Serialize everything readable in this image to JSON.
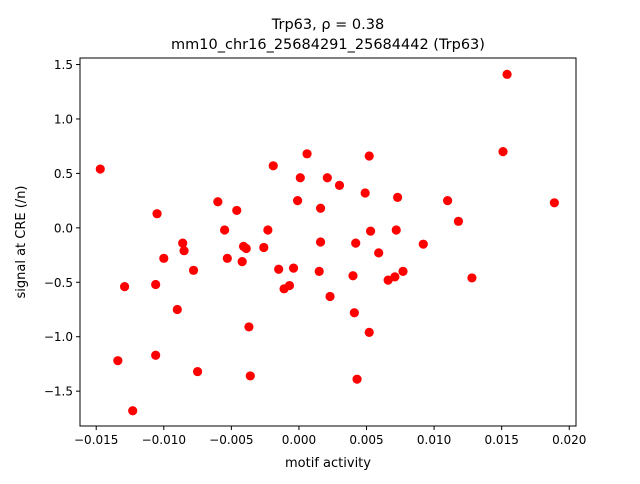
{
  "chart_data": {
    "type": "scatter",
    "title_line1": "Trp63, ρ = 0.38",
    "title_line2": "mm10_chr16_25684291_25684442 (Trp63)",
    "xlabel": "motif activity",
    "ylabel": "signal at CRE (/n)",
    "xlim": [
      -0.0162,
      0.0205
    ],
    "ylim": [
      -1.82,
      1.56
    ],
    "xticks": [
      -0.015,
      -0.01,
      -0.005,
      0.0,
      0.005,
      0.01,
      0.015,
      0.02
    ],
    "xtick_labels": [
      "−0.015",
      "−0.010",
      "−0.005",
      "0.000",
      "0.005",
      "0.010",
      "0.015",
      "0.020"
    ],
    "yticks": [
      -1.5,
      -1.0,
      -0.5,
      0.0,
      0.5,
      1.0,
      1.5
    ],
    "ytick_labels": [
      "−1.5",
      "−1.0",
      "−0.5",
      "0.0",
      "0.5",
      "1.0",
      "1.5"
    ],
    "marker_color": "#ff0000",
    "grid": false,
    "legend": "none",
    "points": [
      [
        -0.0147,
        0.54
      ],
      [
        -0.0134,
        -1.22
      ],
      [
        -0.0129,
        -0.54
      ],
      [
        -0.0123,
        -1.68
      ],
      [
        -0.0106,
        -0.52
      ],
      [
        -0.0106,
        -1.17
      ],
      [
        -0.0105,
        0.13
      ],
      [
        -0.01,
        -0.28
      ],
      [
        -0.009,
        -0.75
      ],
      [
        -0.0086,
        -0.14
      ],
      [
        -0.0085,
        -0.21
      ],
      [
        -0.0078,
        -0.39
      ],
      [
        -0.0075,
        -1.32
      ],
      [
        -0.006,
        0.24
      ],
      [
        -0.0055,
        -0.02
      ],
      [
        -0.0053,
        -0.28
      ],
      [
        -0.0046,
        0.16
      ],
      [
        -0.0042,
        -0.31
      ],
      [
        -0.0041,
        -0.17
      ],
      [
        -0.0039,
        -0.19
      ],
      [
        -0.0037,
        -0.91
      ],
      [
        -0.0036,
        -1.36
      ],
      [
        -0.0026,
        -0.18
      ],
      [
        -0.0023,
        -0.02
      ],
      [
        -0.0019,
        0.57
      ],
      [
        -0.0015,
        -0.38
      ],
      [
        -0.0011,
        -0.56
      ],
      [
        -0.0007,
        -0.53
      ],
      [
        -0.0004,
        -0.37
      ],
      [
        -0.0001,
        0.25
      ],
      [
        0.0001,
        0.46
      ],
      [
        0.0006,
        0.68
      ],
      [
        0.0015,
        -0.4
      ],
      [
        0.0016,
        -0.13
      ],
      [
        0.0016,
        0.18
      ],
      [
        0.0021,
        0.46
      ],
      [
        0.0023,
        -0.63
      ],
      [
        0.003,
        0.39
      ],
      [
        0.004,
        -0.44
      ],
      [
        0.0041,
        -0.78
      ],
      [
        0.0042,
        -0.14
      ],
      [
        0.0043,
        -1.39
      ],
      [
        0.0049,
        0.32
      ],
      [
        0.0052,
        -0.96
      ],
      [
        0.0052,
        0.66
      ],
      [
        0.0053,
        -0.03
      ],
      [
        0.0059,
        -0.23
      ],
      [
        0.0066,
        -0.48
      ],
      [
        0.0071,
        -0.45
      ],
      [
        0.0072,
        -0.02
      ],
      [
        0.0073,
        0.28
      ],
      [
        0.0077,
        -0.4
      ],
      [
        0.0092,
        -0.15
      ],
      [
        0.011,
        0.25
      ],
      [
        0.0118,
        0.06
      ],
      [
        0.0128,
        -0.46
      ],
      [
        0.0151,
        0.7
      ],
      [
        0.0154,
        1.41
      ],
      [
        0.0189,
        0.23
      ]
    ]
  }
}
